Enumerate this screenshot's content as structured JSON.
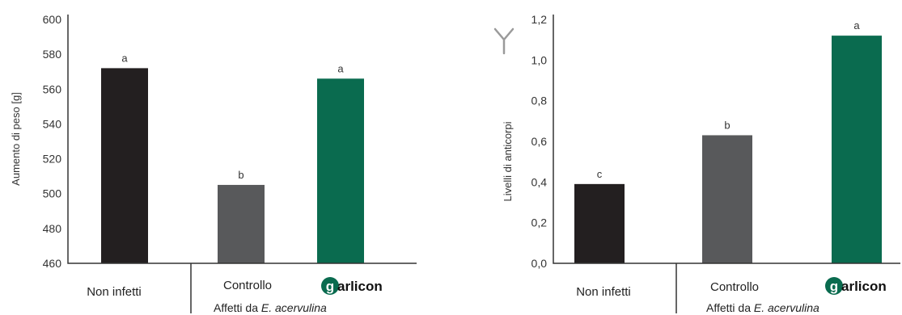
{
  "chart_data": [
    {
      "type": "bar",
      "categories": [
        "Non infetti",
        "Controllo",
        "garlicon"
      ],
      "values": [
        572,
        505,
        566
      ],
      "significance": [
        "a",
        "b",
        "a"
      ],
      "colors": [
        "#231f20",
        "#58595b",
        "#0a6b4f"
      ],
      "ylabel": "Aumento di peso [g]",
      "ylim": [
        460,
        600
      ],
      "yticks": [
        "460",
        "480",
        "500",
        "520",
        "540",
        "560",
        "580",
        "600"
      ],
      "group_label_prefix": "Affetti da ",
      "group_label_italic": "E. acervulina"
    },
    {
      "type": "bar",
      "categories": [
        "Non infetti",
        "Controllo",
        "garlicon"
      ],
      "values": [
        0.39,
        0.63,
        1.12
      ],
      "significance": [
        "c",
        "b",
        "a"
      ],
      "colors": [
        "#231f20",
        "#58595b",
        "#0a6b4f"
      ],
      "ylabel": "Livelli di anticorpi",
      "ylim": [
        0,
        1.2
      ],
      "yticks": [
        "0,0",
        "0,2",
        "0,4",
        "0,6",
        "0,8",
        "1,0",
        "1,2"
      ],
      "group_label_prefix": "Affetti da ",
      "group_label_italic": "E. acervulina",
      "icon": "antibody-y-icon"
    }
  ]
}
